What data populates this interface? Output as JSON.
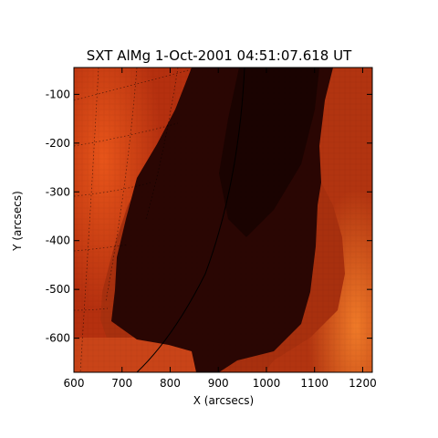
{
  "chart_data": {
    "type": "heatmap",
    "title": "SXT AlMg  1-Oct-2001 04:51:07.618 UT",
    "xlabel": "X (arcsecs)",
    "ylabel": "Y (arcsecs)",
    "xlim": [
      600,
      1220
    ],
    "ylim": [
      -670,
      -45
    ],
    "x_ticks": [
      600,
      700,
      800,
      900,
      1000,
      1100,
      1200
    ],
    "y_ticks": [
      -100,
      -200,
      -300,
      -400,
      -500,
      -600
    ],
    "colormap": "red-temperature",
    "colors": {
      "hot": "#e8551a",
      "warm": "#b5300f",
      "dark": "#2a0603"
    }
  }
}
